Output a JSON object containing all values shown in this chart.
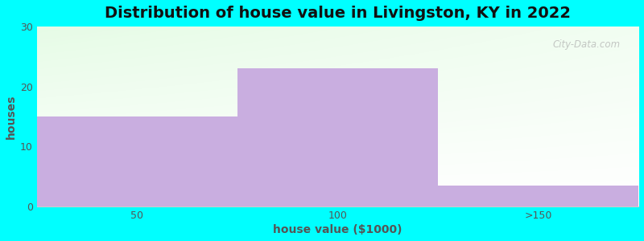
{
  "title": "Distribution of house value in Livingston, KY in 2022",
  "xlabel": "house value ($1000)",
  "ylabel": "houses",
  "categories": [
    "50",
    "100",
    ">150"
  ],
  "values": [
    15,
    23,
    3.5
  ],
  "bar_color": "#c9aee0",
  "background_color": "#00ffff",
  "ylim": [
    0,
    30
  ],
  "yticks": [
    0,
    10,
    20,
    30
  ],
  "title_fontsize": 14,
  "axis_label_fontsize": 10,
  "tick_fontsize": 9,
  "watermark_text": "City-Data.com"
}
